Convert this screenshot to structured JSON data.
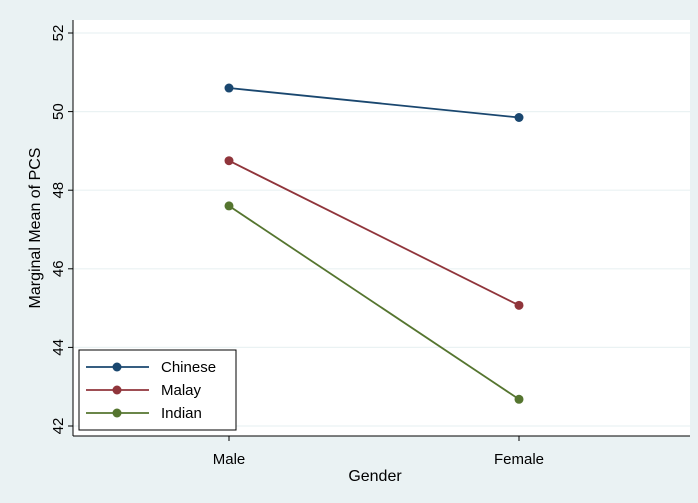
{
  "chart_data": {
    "type": "line",
    "title": "",
    "xlabel": "Gender",
    "ylabel": "Marginal Mean of PCS",
    "categories": [
      "Male",
      "Female"
    ],
    "ylim": [
      42,
      52
    ],
    "yticks": [
      42,
      44,
      46,
      48,
      50,
      52
    ],
    "ytick_labels": [
      "42",
      "44",
      "46",
      "48",
      "50",
      "52"
    ],
    "grid": true,
    "legend_position": "bottom-left",
    "series": [
      {
        "name": "Chinese",
        "values": [
          50.6,
          49.85
        ],
        "color": "#1a476f"
      },
      {
        "name": "Malay",
        "values": [
          48.75,
          45.07
        ],
        "color": "#90353b"
      },
      {
        "name": "Indian",
        "values": [
          47.6,
          42.68
        ],
        "color": "#55752f"
      }
    ]
  },
  "colors": {
    "page_background": "#eaf2f3",
    "plot_background": "#ffffff",
    "grid": "#eaf2f3"
  }
}
